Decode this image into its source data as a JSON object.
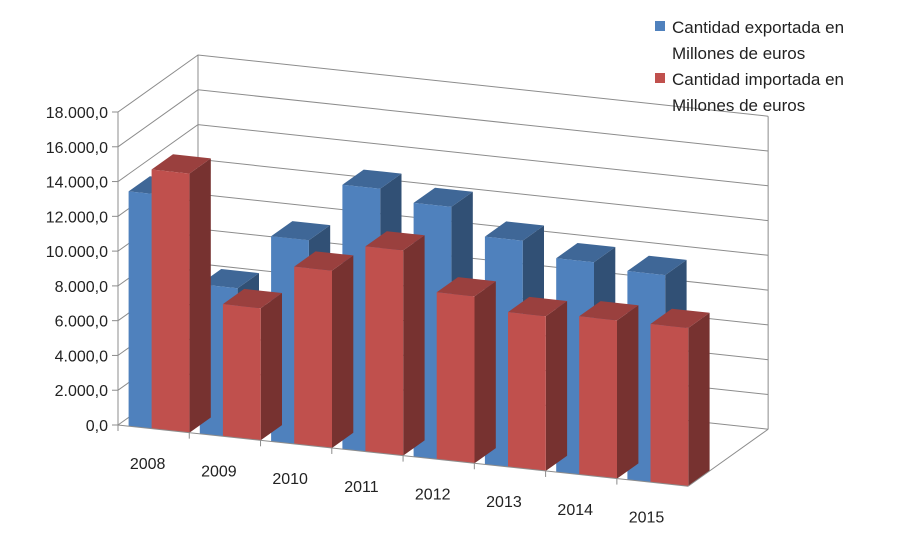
{
  "chart_data": {
    "type": "bar",
    "style": "3d-clustered-column",
    "categories": [
      "2008",
      "2009",
      "2010",
      "2011",
      "2012",
      "2013",
      "2014",
      "2015"
    ],
    "series": [
      {
        "name": "Cantidad exportada en Millones de euros",
        "name_lines": [
          "Cantidad exportada en",
          "Millones de euros"
        ],
        "values": [
          13500,
          8600,
          11800,
          15200,
          14600,
          13100,
          12300,
          12000
        ],
        "color": "#4f81bd"
      },
      {
        "name": "Cantidad importada en Millones de euros",
        "name_lines": [
          "Cantidad importada en",
          "Millones de euros"
        ],
        "values": [
          14900,
          7600,
          10200,
          11800,
          9600,
          8900,
          9100,
          9100
        ],
        "color": "#c0504d"
      }
    ],
    "y_ticks": [
      "0,0",
      "2.000,0",
      "4.000,0",
      "6.000,0",
      "8.000,0",
      "10.000,0",
      "12.000,0",
      "14.000,0",
      "16.000,0",
      "18.000,0"
    ],
    "ylim": [
      0,
      18000
    ],
    "grid": true,
    "legend_position": "top-right"
  }
}
